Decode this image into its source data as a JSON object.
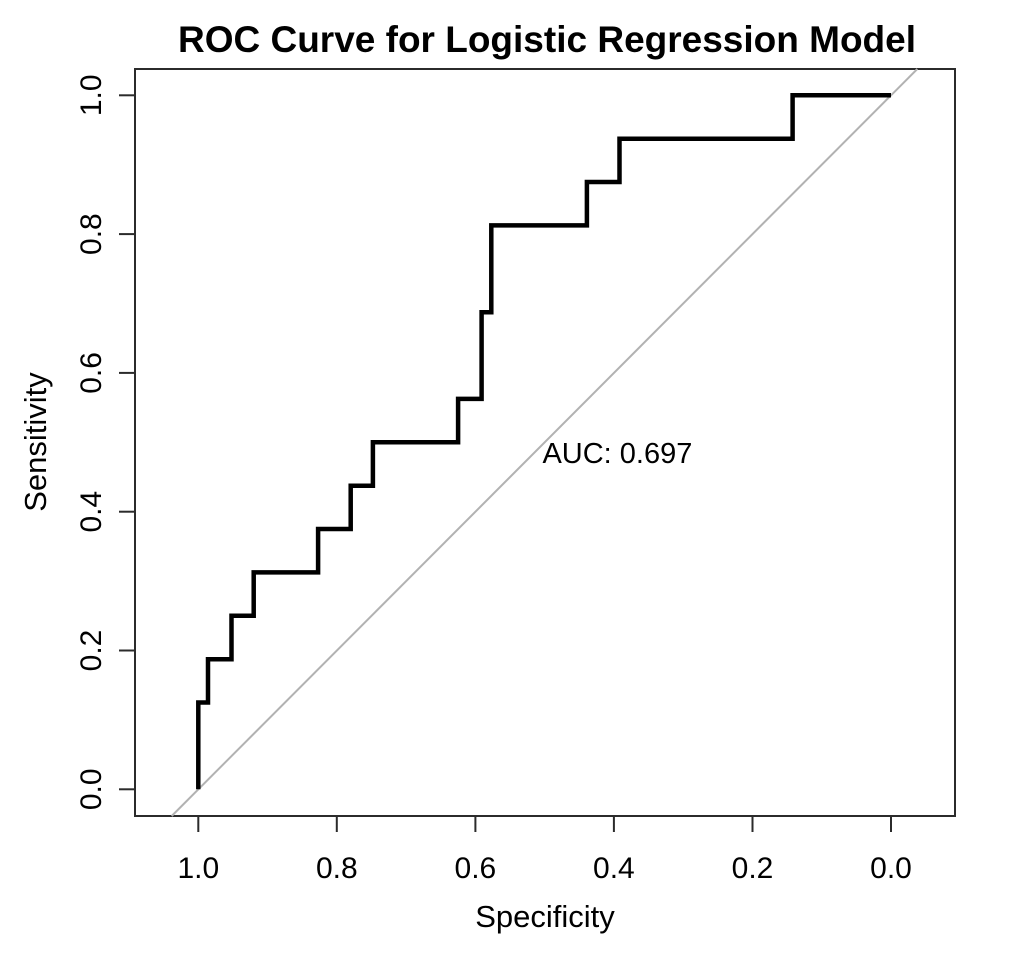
{
  "chart_data": {
    "type": "line",
    "subtype": "roc_step_curve",
    "title": "ROC Curve for Logistic Regression Model",
    "xlabel": "Specificity",
    "ylabel": "Sensitivity",
    "grid": false,
    "legend": "none",
    "x_axis": {
      "reversed": true,
      "range": [
        1.0,
        0.0
      ],
      "display_lim": [
        1.09,
        -0.09
      ],
      "ticks": [
        {
          "label": "1.0",
          "value": 1.0
        },
        {
          "label": "0.8",
          "value": 0.8
        },
        {
          "label": "0.6",
          "value": 0.6
        },
        {
          "label": "0.4",
          "value": 0.4
        },
        {
          "label": "0.2",
          "value": 0.2
        },
        {
          "label": "0.0",
          "value": 0.0
        }
      ]
    },
    "y_axis": {
      "range": [
        0.0,
        1.0
      ],
      "display_lim": [
        -0.04,
        1.04
      ],
      "ticks": [
        {
          "label": "0.0",
          "value": 0.0
        },
        {
          "label": "0.2",
          "value": 0.2
        },
        {
          "label": "0.4",
          "value": 0.4
        },
        {
          "label": "0.6",
          "value": 0.6
        },
        {
          "label": "0.8",
          "value": 0.8
        },
        {
          "label": "1.0",
          "value": 1.0
        }
      ]
    },
    "annotation": {
      "text": "AUC: 0.697",
      "auc_value": 0.697,
      "position": {
        "specificity": 0.395,
        "sensitivity": 0.47
      }
    },
    "reference_line": {
      "type": "chance_diagonal",
      "from_spec_sens": [
        1.0,
        0.0
      ],
      "to_spec_sens": [
        0.0,
        1.0
      ],
      "color": "#b2b2b2"
    },
    "series": [
      {
        "name": "ROC curve",
        "color": "#000000",
        "points_specificity_sensitivity": [
          [
            1.0,
            0.0
          ],
          [
            1.0,
            0.125
          ],
          [
            0.986,
            0.125
          ],
          [
            0.986,
            0.1875
          ],
          [
            0.952,
            0.1875
          ],
          [
            0.952,
            0.25
          ],
          [
            0.92,
            0.25
          ],
          [
            0.92,
            0.3125
          ],
          [
            0.827,
            0.3125
          ],
          [
            0.827,
            0.375
          ],
          [
            0.78,
            0.375
          ],
          [
            0.78,
            0.4375
          ],
          [
            0.748,
            0.4375
          ],
          [
            0.748,
            0.5
          ],
          [
            0.625,
            0.5
          ],
          [
            0.625,
            0.5625
          ],
          [
            0.591,
            0.5625
          ],
          [
            0.591,
            0.6875
          ],
          [
            0.577,
            0.6875
          ],
          [
            0.577,
            0.8125
          ],
          [
            0.439,
            0.8125
          ],
          [
            0.439,
            0.875
          ],
          [
            0.392,
            0.875
          ],
          [
            0.392,
            0.9375
          ],
          [
            0.142,
            0.9375
          ],
          [
            0.142,
            1.0
          ],
          [
            0.0,
            1.0
          ]
        ]
      }
    ]
  }
}
